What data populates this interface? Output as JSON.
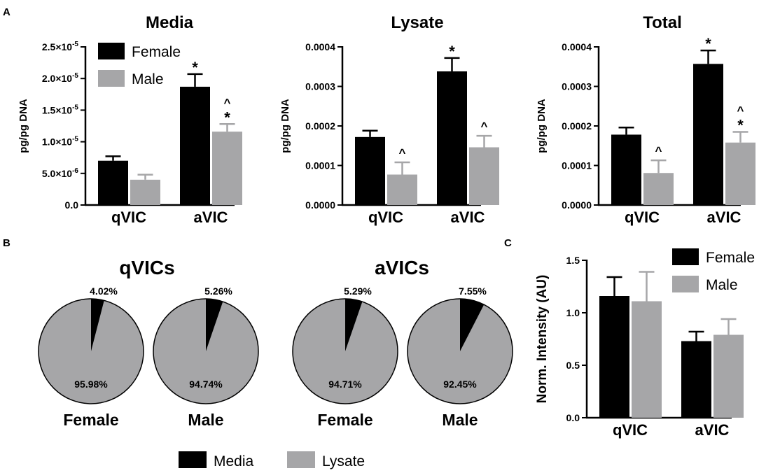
{
  "panel_labels": {
    "a": "A",
    "b": "B",
    "c": "C"
  },
  "colors": {
    "female": "#000000",
    "male": "#a6a6a8",
    "text": "#000000"
  },
  "legend_top": {
    "female": "Female",
    "male": "Male"
  },
  "legend_pie": {
    "media": "Media",
    "lysate": "Lysate"
  },
  "chart_data": [
    {
      "id": "media",
      "type": "bar",
      "title": "Media",
      "ylabel": "pg/pg DNA",
      "categories": [
        "qVIC",
        "aVIC"
      ],
      "ylim": [
        0,
        2.5e-05
      ],
      "ticks": [
        0,
        5e-06,
        1e-05,
        1.5e-05,
        2e-05,
        2.5e-05
      ],
      "tick_labels": [
        {
          "m": "0.0",
          "e": ""
        },
        {
          "m": "5.0×10",
          "e": "-6"
        },
        {
          "m": "1.0×10",
          "e": "-5"
        },
        {
          "m": "1.5×10",
          "e": "-5"
        },
        {
          "m": "2.0×10",
          "e": "-5"
        },
        {
          "m": "2.5×10",
          "e": "-5"
        }
      ],
      "series": [
        {
          "name": "Female",
          "values": [
            7e-06,
            1.87e-05
          ],
          "errors": [
            7e-07,
            2e-06
          ],
          "annotations": [
            "",
            "*"
          ]
        },
        {
          "name": "Male",
          "values": [
            4e-06,
            1.16e-05
          ],
          "errors": [
            8e-07,
            1.2e-06
          ],
          "annotations": [
            "",
            "^\n*"
          ]
        }
      ]
    },
    {
      "id": "lysate",
      "type": "bar",
      "title": "Lysate",
      "ylabel": "pg/pg DNA",
      "categories": [
        "qVIC",
        "aVIC"
      ],
      "ylim": [
        0,
        0.0004
      ],
      "ticks": [
        0,
        0.0001,
        0.0002,
        0.0003,
        0.0004
      ],
      "tick_labels": [
        {
          "m": "0.0000",
          "e": ""
        },
        {
          "m": "0.0001",
          "e": ""
        },
        {
          "m": "0.0002",
          "e": ""
        },
        {
          "m": "0.0003",
          "e": ""
        },
        {
          "m": "0.0004",
          "e": ""
        }
      ],
      "series": [
        {
          "name": "Female",
          "values": [
            0.000172,
            0.000338
          ],
          "errors": [
            1.6e-05,
            3.4e-05
          ],
          "annotations": [
            "",
            "*"
          ]
        },
        {
          "name": "Male",
          "values": [
            7.7e-05,
            0.000146
          ],
          "errors": [
            3.1e-05,
            2.9e-05
          ],
          "annotations": [
            "^",
            "^"
          ]
        }
      ]
    },
    {
      "id": "total",
      "type": "bar",
      "title": "Total",
      "ylabel": "pg/pg DNA",
      "categories": [
        "qVIC",
        "aVIC"
      ],
      "ylim": [
        0,
        0.0004
      ],
      "ticks": [
        0,
        0.0001,
        0.0002,
        0.0003,
        0.0004
      ],
      "tick_labels": [
        {
          "m": "0.0000",
          "e": ""
        },
        {
          "m": "0.0001",
          "e": ""
        },
        {
          "m": "0.0002",
          "e": ""
        },
        {
          "m": "0.0003",
          "e": ""
        },
        {
          "m": "0.0004",
          "e": ""
        }
      ],
      "series": [
        {
          "name": "Female",
          "values": [
            0.000178,
            0.000357
          ],
          "errors": [
            1.8e-05,
            3.4e-05
          ],
          "annotations": [
            "",
            "*"
          ]
        },
        {
          "name": "Male",
          "values": [
            8.1e-05,
            0.000158
          ],
          "errors": [
            3.2e-05,
            2.7e-05
          ],
          "annotations": [
            "^",
            "^\n*"
          ]
        }
      ]
    },
    {
      "id": "pies",
      "type": "pie",
      "groups": [
        {
          "title": "qVICs",
          "pies": [
            {
              "label": "Female",
              "media": 4.02,
              "lysate": 95.98,
              "media_label": "4.02%",
              "lysate_label": "95.98%"
            },
            {
              "label": "Male",
              "media": 5.26,
              "lysate": 94.74,
              "media_label": "5.26%",
              "lysate_label": "94.74%"
            }
          ]
        },
        {
          "title": "aVICs",
          "pies": [
            {
              "label": "Female",
              "media": 5.29,
              "lysate": 94.71,
              "media_label": "5.29%",
              "lysate_label": "94.71%"
            },
            {
              "label": "Male",
              "media": 7.55,
              "lysate": 92.45,
              "media_label": "7.55%",
              "lysate_label": "92.45%"
            }
          ]
        }
      ]
    },
    {
      "id": "intensity",
      "type": "bar",
      "title": "",
      "ylabel": "Norm. Intensity (AU)",
      "categories": [
        "qVIC",
        "aVIC"
      ],
      "ylim": [
        0,
        1.5
      ],
      "ticks": [
        0,
        0.5,
        1.0,
        1.5
      ],
      "tick_labels": [
        {
          "m": "0.0",
          "e": ""
        },
        {
          "m": "0.5",
          "e": ""
        },
        {
          "m": "1.0",
          "e": ""
        },
        {
          "m": "1.5",
          "e": ""
        }
      ],
      "series": [
        {
          "name": "Female",
          "values": [
            1.16,
            0.73
          ],
          "errors": [
            0.18,
            0.09
          ],
          "annotations": [
            "",
            ""
          ]
        },
        {
          "name": "Male",
          "values": [
            1.11,
            0.79
          ],
          "errors": [
            0.28,
            0.15
          ],
          "annotations": [
            "",
            ""
          ]
        }
      ]
    }
  ]
}
